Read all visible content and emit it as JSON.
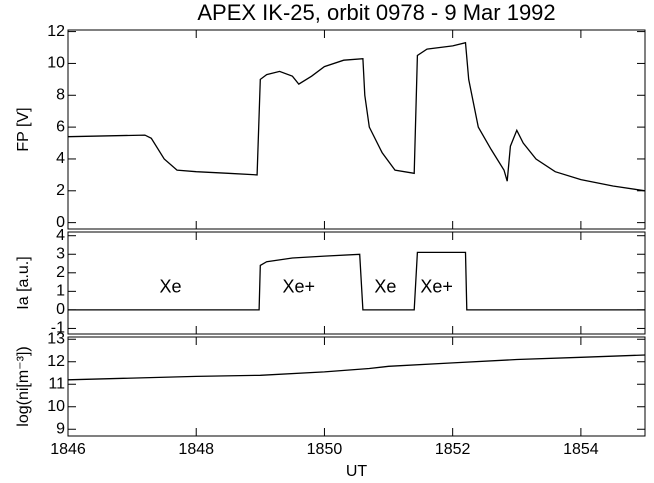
{
  "chart_data": [
    {
      "type": "line",
      "title": "APEX IK-25, orbit 0978 - 9 Mar 1992",
      "ylabel": "FP [V]",
      "xlim": [
        1846,
        1855
      ],
      "xticks": [
        1846,
        1848,
        1850,
        1852,
        1854
      ],
      "ylim": [
        -0.4,
        12.1
      ],
      "yticks": [
        0,
        2,
        4,
        6,
        8,
        10,
        12
      ],
      "series": [
        {
          "color": "#000000",
          "x": [
            1846,
            1847.2,
            1847.3,
            1847.5,
            1847.7,
            1848,
            1848.5,
            1848.95,
            1849.0,
            1849.1,
            1849.3,
            1849.5,
            1849.6,
            1849.8,
            1850,
            1850.3,
            1850.6,
            1850.63,
            1850.7,
            1850.9,
            1851.1,
            1851.4,
            1851.45,
            1851.6,
            1852,
            1852.2,
            1852.25,
            1852.4,
            1852.6,
            1852.8,
            1852.85,
            1852.9,
            1853.0,
            1853.1,
            1853.3,
            1853.6,
            1854,
            1854.5,
            1855
          ],
          "values": [
            5.4,
            5.5,
            5.3,
            4.0,
            3.3,
            3.2,
            3.1,
            3.0,
            9.0,
            9.3,
            9.5,
            9.2,
            8.7,
            9.2,
            9.8,
            10.2,
            10.3,
            8,
            6,
            4.4,
            3.3,
            3.1,
            10.5,
            10.9,
            11.1,
            11.3,
            9,
            6,
            4.6,
            3.3,
            2.6,
            4.8,
            5.8,
            5.0,
            4.0,
            3.2,
            2.7,
            2.3,
            2.0
          ]
        }
      ]
    },
    {
      "type": "line",
      "ylabel": "Ia [a.u.]",
      "xlim": [
        1846,
        1855
      ],
      "xticks": [
        1846,
        1848,
        1850,
        1852,
        1854
      ],
      "ylim": [
        -1.3,
        4.2
      ],
      "yticks": [
        -1,
        0,
        1,
        2,
        3,
        4
      ],
      "annotations": [
        "Xe",
        "Xe+",
        "Xe",
        "Xe+"
      ],
      "series": [
        {
          "color": "#000000",
          "x": [
            1846,
            1848.98,
            1849,
            1849.1,
            1849.5,
            1850,
            1850.55,
            1850.6,
            1851.4,
            1851.45,
            1852.2,
            1852.22,
            1855
          ],
          "values": [
            0,
            0,
            2.4,
            2.6,
            2.8,
            2.9,
            3.0,
            0,
            0,
            3.1,
            3.1,
            0,
            0
          ]
        }
      ]
    },
    {
      "type": "line",
      "ylabel": "log(ni[m⁻³])",
      "xlabel": "UT",
      "xlim": [
        1846,
        1855
      ],
      "xticks": [
        1846,
        1848,
        1850,
        1852,
        1854
      ],
      "ylim": [
        8.7,
        13.1
      ],
      "yticks": [
        9,
        10,
        11,
        12,
        13
      ],
      "series": [
        {
          "color": "#000000",
          "x": [
            1846,
            1848,
            1849,
            1850,
            1850.7,
            1851,
            1852,
            1853,
            1854,
            1855
          ],
          "values": [
            11.2,
            11.35,
            11.4,
            11.55,
            11.7,
            11.8,
            11.95,
            12.1,
            12.2,
            12.3
          ]
        }
      ]
    }
  ]
}
